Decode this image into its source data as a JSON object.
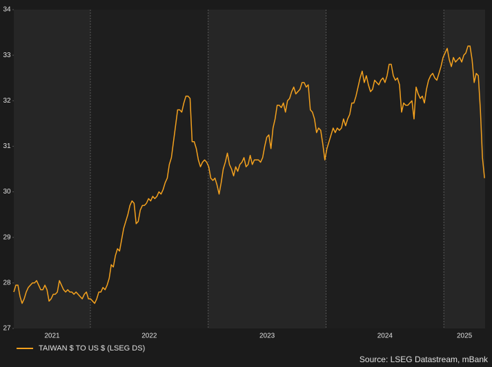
{
  "chart_data": {
    "type": "line",
    "source": "Source: LSEG Datastream, mBank",
    "x": [
      2021.35,
      2021.3676,
      2021.3852,
      2021.4028,
      2021.4204,
      2021.438,
      2021.4556,
      2021.4732,
      2021.4908,
      2021.5084,
      2021.526,
      2021.5436,
      2021.5612,
      2021.5788,
      2021.5964,
      2021.614,
      2021.6316,
      2021.6492,
      2021.6668,
      2021.6844,
      2021.702,
      2021.7196,
      2021.7372,
      2021.7548,
      2021.7724,
      2021.79,
      2021.8076,
      2021.8252,
      2021.8428,
      2021.8604,
      2021.878,
      2021.8956,
      2021.9132,
      2021.9308,
      2021.9484,
      2021.966,
      2021.9836,
      2022.0012,
      2022.0188,
      2022.0364,
      2022.054,
      2022.0716,
      2022.0892,
      2022.1068,
      2022.1244,
      2022.142,
      2022.1596,
      2022.1772,
      2022.1948,
      2022.2124,
      2022.23,
      2022.2476,
      2022.2652,
      2022.2828,
      2022.3004,
      2022.318,
      2022.3356,
      2022.3532,
      2022.3708,
      2022.3884,
      2022.406,
      2022.4236,
      2022.4412,
      2022.4588,
      2022.4764,
      2022.494,
      2022.5116,
      2022.5292,
      2022.5468,
      2022.5644,
      2022.582,
      2022.5996,
      2022.6172,
      2022.6348,
      2022.6524,
      2022.67,
      2022.6876,
      2022.7052,
      2022.7228,
      2022.7404,
      2022.758,
      2022.7756,
      2022.7932,
      2022.8108,
      2022.8284,
      2022.846,
      2022.8636,
      2022.8812,
      2022.8988,
      2022.9164,
      2022.934,
      2022.9516,
      2022.9692,
      2022.9868,
      2023.0044,
      2023.022,
      2023.0396,
      2023.0572,
      2023.0748,
      2023.0924,
      2023.11,
      2023.1276,
      2023.1452,
      2023.1628,
      2023.1804,
      2023.198,
      2023.2156,
      2023.2332,
      2023.2508,
      2023.2684,
      2023.286,
      2023.3036,
      2023.3212,
      2023.3388,
      2023.3564,
      2023.374,
      2023.3916,
      2023.4092,
      2023.4268,
      2023.4444,
      2023.462,
      2023.4796,
      2023.4972,
      2023.5148,
      2023.5324,
      2023.55,
      2023.5676,
      2023.5852,
      2023.6028,
      2023.6204,
      2023.638,
      2023.6556,
      2023.6732,
      2023.6908,
      2023.7084,
      2023.726,
      2023.7436,
      2023.7612,
      2023.7788,
      2023.7964,
      2023.814,
      2023.8316,
      2023.8492,
      2023.8668,
      2023.8844,
      2023.902,
      2023.9196,
      2023.9372,
      2023.9548,
      2023.9724,
      2023.99,
      2024.0076,
      2024.0252,
      2024.0428,
      2024.0604,
      2024.078,
      2024.0956,
      2024.1132,
      2024.1308,
      2024.1484,
      2024.166,
      2024.1836,
      2024.2012,
      2024.2188,
      2024.2364,
      2024.254,
      2024.2716,
      2024.2892,
      2024.3068,
      2024.3244,
      2024.342,
      2024.3596,
      2024.3772,
      2024.3948,
      2024.4124,
      2024.43,
      2024.4476,
      2024.4652,
      2024.4828,
      2024.5004,
      2024.518,
      2024.5356,
      2024.5532,
      2024.5708,
      2024.5884,
      2024.606,
      2024.6236,
      2024.6412,
      2024.6588,
      2024.6764,
      2024.694,
      2024.7116,
      2024.7292,
      2024.7468,
      2024.7644,
      2024.782,
      2024.7996,
      2024.8172,
      2024.8348,
      2024.8524,
      2024.87,
      2024.8876,
      2024.9052,
      2024.9228,
      2024.9404,
      2024.958,
      2024.9756,
      2024.9932,
      2025.0108,
      2025.0284,
      2025.046,
      2025.0636,
      2025.0812,
      2025.0988,
      2025.1164,
      2025.134,
      2025.1516,
      2025.1692,
      2025.1868,
      2025.2044,
      2025.222,
      2025.2396,
      2025.2572,
      2025.2748,
      2025.2924,
      2025.31,
      2025.3276,
      2025.3452
    ],
    "series": [
      {
        "name": "TAIWAN $ TO US $ (LSEG DS)",
        "color": "#f5a21e",
        "values": [
          27.8,
          27.95,
          27.95,
          27.7,
          27.55,
          27.65,
          27.8,
          27.9,
          27.95,
          28.0,
          28.0,
          28.05,
          27.95,
          27.85,
          27.85,
          27.95,
          27.85,
          27.6,
          27.65,
          27.75,
          27.75,
          27.8,
          28.05,
          27.95,
          27.85,
          27.8,
          27.85,
          27.8,
          27.8,
          27.75,
          27.8,
          27.75,
          27.7,
          27.65,
          27.75,
          27.8,
          27.65,
          27.65,
          27.6,
          27.55,
          27.65,
          27.8,
          27.8,
          27.9,
          27.85,
          27.95,
          28.1,
          28.4,
          28.35,
          28.6,
          28.75,
          28.7,
          28.95,
          29.2,
          29.35,
          29.5,
          29.7,
          29.8,
          29.75,
          29.3,
          29.35,
          29.6,
          29.7,
          29.7,
          29.75,
          29.85,
          29.8,
          29.9,
          29.85,
          29.9,
          30.0,
          29.95,
          30.05,
          30.2,
          30.3,
          30.6,
          30.75,
          31.1,
          31.45,
          31.8,
          31.8,
          31.75,
          31.95,
          32.1,
          32.1,
          32.05,
          31.1,
          31.1,
          30.95,
          30.7,
          30.55,
          30.65,
          30.7,
          30.65,
          30.55,
          30.3,
          30.25,
          30.3,
          30.15,
          29.95,
          30.2,
          30.5,
          30.65,
          30.85,
          30.6,
          30.5,
          30.35,
          30.55,
          30.45,
          30.6,
          30.65,
          30.75,
          30.55,
          30.6,
          30.8,
          30.6,
          30.7,
          30.7,
          30.7,
          30.65,
          30.75,
          31.0,
          31.2,
          31.25,
          30.95,
          31.4,
          31.6,
          31.9,
          31.9,
          31.85,
          31.95,
          31.75,
          32.0,
          32.05,
          32.2,
          32.3,
          32.15,
          32.2,
          32.25,
          32.4,
          32.4,
          32.3,
          32.35,
          31.8,
          31.75,
          31.6,
          31.3,
          31.4,
          31.35,
          31.05,
          30.7,
          30.95,
          31.1,
          31.25,
          31.4,
          31.3,
          31.4,
          31.35,
          31.4,
          31.6,
          31.45,
          31.6,
          31.7,
          31.95,
          31.95,
          32.1,
          32.3,
          32.5,
          32.65,
          32.4,
          32.55,
          32.35,
          32.2,
          32.25,
          32.45,
          32.4,
          32.35,
          32.45,
          32.5,
          32.4,
          32.55,
          32.8,
          32.8,
          32.55,
          32.45,
          32.5,
          32.35,
          31.75,
          31.95,
          31.9,
          31.9,
          31.95,
          32.0,
          31.6,
          32.3,
          32.15,
          32.05,
          32.1,
          31.95,
          32.25,
          32.45,
          32.55,
          32.6,
          32.5,
          32.45,
          32.6,
          32.75,
          32.95,
          33.05,
          33.15,
          32.9,
          32.75,
          32.95,
          32.85,
          32.9,
          32.95,
          32.85,
          33.0,
          33.05,
          33.2,
          33.2,
          32.9,
          32.4,
          32.6,
          32.55,
          31.8,
          30.75,
          30.3
        ]
      }
    ],
    "xlim": [
      2021.35,
      2025.35
    ],
    "xticks": [
      2022,
      2023,
      2024,
      2025
    ],
    "year_labels": [
      2021,
      2022,
      2023,
      2024,
      2025
    ],
    "ylim": [
      27,
      34
    ],
    "yticks": [
      27,
      28,
      29,
      30,
      31,
      32,
      33,
      34
    ],
    "legend": "bottom-left"
  }
}
